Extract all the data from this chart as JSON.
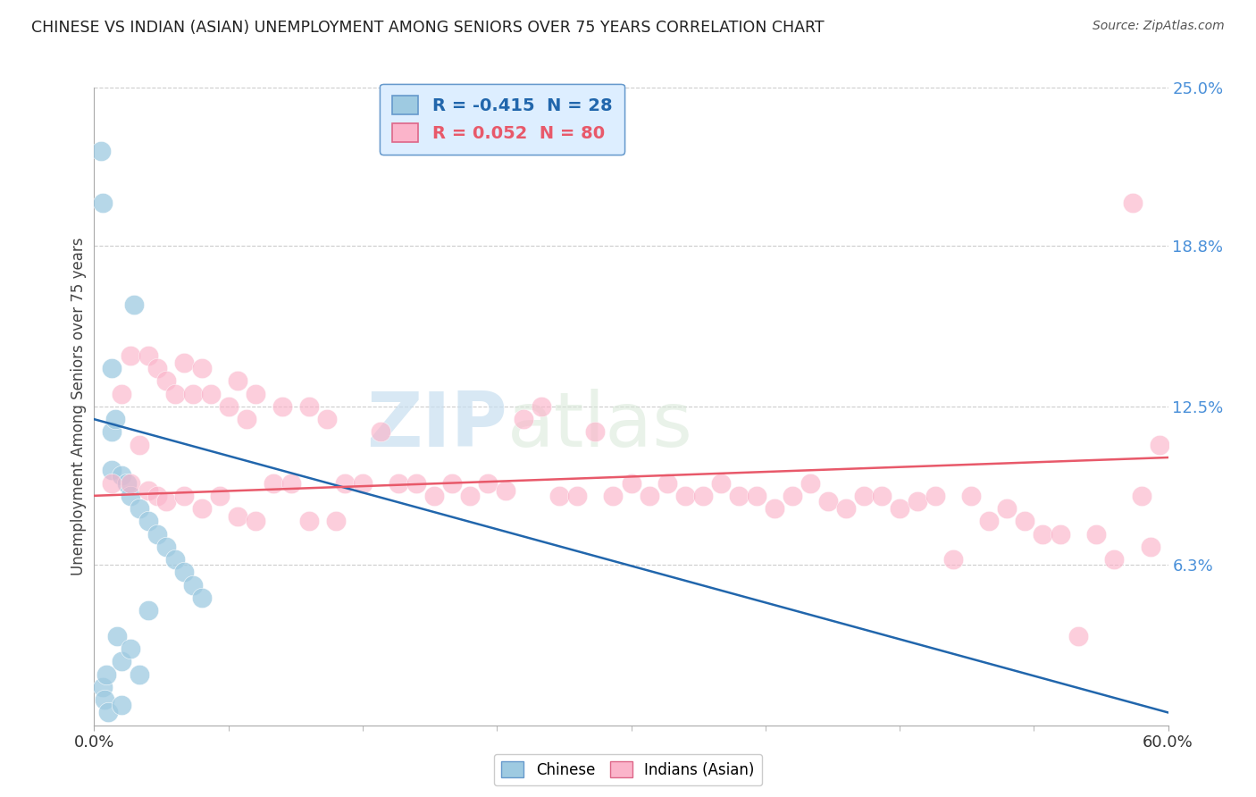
{
  "title": "CHINESE VS INDIAN (ASIAN) UNEMPLOYMENT AMONG SENIORS OVER 75 YEARS CORRELATION CHART",
  "source": "Source: ZipAtlas.com",
  "ylabel": "Unemployment Among Seniors over 75 years",
  "xlim": [
    0,
    60
  ],
  "ylim": [
    0,
    25
  ],
  "yticks_right": [
    6.3,
    12.5,
    18.8,
    25.0
  ],
  "ytick_labels_right": [
    "6.3%",
    "12.5%",
    "18.8%",
    "25.0%"
  ],
  "chinese_R": -0.415,
  "chinese_N": 28,
  "indian_R": 0.052,
  "indian_N": 80,
  "chinese_color": "#9ecae1",
  "indian_color": "#fbb4ca",
  "chinese_line_color": "#2166ac",
  "indian_line_color": "#e8596a",
  "background_color": "#ffffff",
  "grid_color": "#cccccc",
  "watermark_part1": "ZIP",
  "watermark_part2": "atlas",
  "legend_box_facecolor": "#ddeeff",
  "legend_border_color": "#6699cc",
  "chinese_x": [
    0.4,
    0.5,
    0.5,
    0.6,
    0.7,
    0.8,
    1.0,
    1.0,
    1.0,
    1.2,
    1.3,
    1.5,
    1.5,
    1.5,
    1.8,
    2.0,
    2.0,
    2.2,
    2.5,
    2.5,
    3.0,
    3.0,
    3.5,
    4.0,
    4.5,
    5.0,
    5.5,
    6.0
  ],
  "chinese_y": [
    22.5,
    20.5,
    1.5,
    1.0,
    2.0,
    0.5,
    14.0,
    11.5,
    10.0,
    12.0,
    3.5,
    9.8,
    2.5,
    0.8,
    9.5,
    9.0,
    3.0,
    16.5,
    8.5,
    2.0,
    8.0,
    4.5,
    7.5,
    7.0,
    6.5,
    6.0,
    5.5,
    5.0
  ],
  "indian_x": [
    1.0,
    1.5,
    2.0,
    2.0,
    2.5,
    3.0,
    3.0,
    3.5,
    3.5,
    4.0,
    4.0,
    4.5,
    5.0,
    5.0,
    5.5,
    6.0,
    6.0,
    6.5,
    7.0,
    7.5,
    8.0,
    8.0,
    8.5,
    9.0,
    9.0,
    10.0,
    10.5,
    11.0,
    12.0,
    12.0,
    13.0,
    13.5,
    14.0,
    15.0,
    16.0,
    17.0,
    18.0,
    19.0,
    20.0,
    21.0,
    22.0,
    23.0,
    24.0,
    25.0,
    26.0,
    27.0,
    28.0,
    29.0,
    30.0,
    31.0,
    32.0,
    33.0,
    34.0,
    35.0,
    36.0,
    37.0,
    38.0,
    39.0,
    40.0,
    41.0,
    42.0,
    43.0,
    44.0,
    45.0,
    46.0,
    47.0,
    48.0,
    49.0,
    50.0,
    51.0,
    52.0,
    53.0,
    54.0,
    55.0,
    56.0,
    57.0,
    58.0,
    58.5,
    59.0,
    59.5
  ],
  "indian_y": [
    9.5,
    13.0,
    14.5,
    9.5,
    11.0,
    14.5,
    9.2,
    14.0,
    9.0,
    13.5,
    8.8,
    13.0,
    14.2,
    9.0,
    13.0,
    14.0,
    8.5,
    13.0,
    9.0,
    12.5,
    13.5,
    8.2,
    12.0,
    13.0,
    8.0,
    9.5,
    12.5,
    9.5,
    12.5,
    8.0,
    12.0,
    8.0,
    9.5,
    9.5,
    11.5,
    9.5,
    9.5,
    9.0,
    9.5,
    9.0,
    9.5,
    9.2,
    12.0,
    12.5,
    9.0,
    9.0,
    11.5,
    9.0,
    9.5,
    9.0,
    9.5,
    9.0,
    9.0,
    9.5,
    9.0,
    9.0,
    8.5,
    9.0,
    9.5,
    8.8,
    8.5,
    9.0,
    9.0,
    8.5,
    8.8,
    9.0,
    6.5,
    9.0,
    8.0,
    8.5,
    8.0,
    7.5,
    7.5,
    3.5,
    7.5,
    6.5,
    20.5,
    9.0,
    7.0,
    11.0
  ],
  "chinese_trend_x": [
    0,
    60
  ],
  "chinese_trend_y": [
    12.0,
    0.5
  ],
  "indian_trend_x": [
    0,
    60
  ],
  "indian_trend_y": [
    9.0,
    10.5
  ]
}
